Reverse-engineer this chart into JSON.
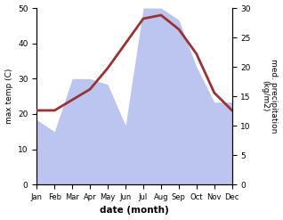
{
  "months": [
    "Jan",
    "Feb",
    "Mar",
    "Apr",
    "May",
    "Jun",
    "Jul",
    "Aug",
    "Sep",
    "Oct",
    "Nov",
    "Dec"
  ],
  "temperature": [
    21,
    21,
    24,
    27,
    33,
    40,
    47,
    48,
    44,
    37,
    26,
    21
  ],
  "precipitation": [
    11,
    9,
    18,
    18,
    17,
    10,
    30,
    30,
    28,
    20,
    14,
    14
  ],
  "temp_color": "#993333",
  "precip_color": "#bbc5f0",
  "xlabel": "date (month)",
  "ylabel_left": "max temp (C)",
  "ylabel_right": "med. precipitation\n(kg/m2)",
  "ylim_left": [
    0,
    50
  ],
  "ylim_right": [
    0,
    30
  ],
  "yticks_left": [
    0,
    10,
    20,
    30,
    40,
    50
  ],
  "yticks_right": [
    0,
    5,
    10,
    15,
    20,
    25,
    30
  ],
  "bg_color": "#ffffff"
}
